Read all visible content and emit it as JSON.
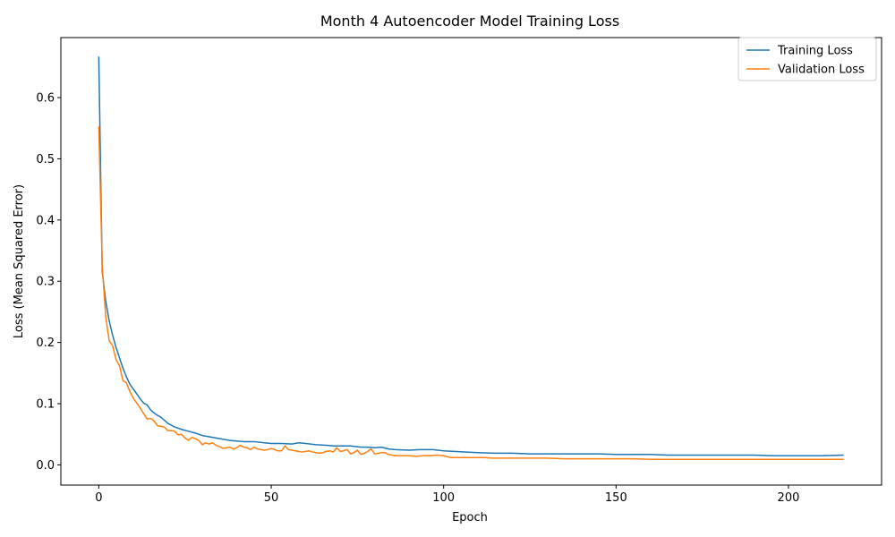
{
  "chart_data": {
    "type": "line",
    "title": "Month 4 Autoencoder Model Training Loss",
    "xlabel": "Epoch",
    "ylabel": "Loss (Mean Squared Error)",
    "xlim": [
      -11,
      227
    ],
    "ylim": [
      -0.033,
      0.698
    ],
    "xticks": [
      0,
      50,
      100,
      150,
      200
    ],
    "yticks": [
      0.0,
      0.1,
      0.2,
      0.3,
      0.4,
      0.5,
      0.6
    ],
    "xtick_labels": [
      "0",
      "50",
      "100",
      "150",
      "200"
    ],
    "ytick_labels": [
      "0.0",
      "0.1",
      "0.2",
      "0.3",
      "0.4",
      "0.5",
      "0.6"
    ],
    "grid": false,
    "legend_position": "top-right",
    "series": [
      {
        "name": "Training Loss",
        "color": "#1f77b4",
        "points": [
          [
            0,
            0.667
          ],
          [
            1,
            0.315
          ],
          [
            2,
            0.268
          ],
          [
            3,
            0.236
          ],
          [
            4,
            0.212
          ],
          [
            5,
            0.192
          ],
          [
            6,
            0.175
          ],
          [
            7,
            0.158
          ],
          [
            8,
            0.144
          ],
          [
            9,
            0.132
          ],
          [
            10,
            0.124
          ],
          [
            11,
            0.116
          ],
          [
            12,
            0.108
          ],
          [
            13,
            0.101
          ],
          [
            14,
            0.098
          ],
          [
            15,
            0.09
          ],
          [
            16,
            0.085
          ],
          [
            17,
            0.081
          ],
          [
            18,
            0.078
          ],
          [
            19,
            0.073
          ],
          [
            20,
            0.068
          ],
          [
            22,
            0.062
          ],
          [
            24,
            0.058
          ],
          [
            26,
            0.055
          ],
          [
            28,
            0.052
          ],
          [
            30,
            0.048
          ],
          [
            32,
            0.046
          ],
          [
            34,
            0.044
          ],
          [
            36,
            0.042
          ],
          [
            38,
            0.04
          ],
          [
            40,
            0.039
          ],
          [
            42,
            0.038
          ],
          [
            45,
            0.038
          ],
          [
            48,
            0.036
          ],
          [
            50,
            0.035
          ],
          [
            53,
            0.035
          ],
          [
            56,
            0.034
          ],
          [
            58,
            0.036
          ],
          [
            60,
            0.035
          ],
          [
            63,
            0.033
          ],
          [
            66,
            0.032
          ],
          [
            68,
            0.031
          ],
          [
            70,
            0.031
          ],
          [
            73,
            0.031
          ],
          [
            76,
            0.029
          ],
          [
            78,
            0.029
          ],
          [
            80,
            0.028
          ],
          [
            82,
            0.029
          ],
          [
            84,
            0.026
          ],
          [
            86,
            0.025
          ],
          [
            90,
            0.024
          ],
          [
            93,
            0.025
          ],
          [
            97,
            0.025
          ],
          [
            100,
            0.023
          ],
          [
            103,
            0.022
          ],
          [
            106,
            0.021
          ],
          [
            110,
            0.02
          ],
          [
            115,
            0.019
          ],
          [
            120,
            0.019
          ],
          [
            125,
            0.018
          ],
          [
            130,
            0.018
          ],
          [
            135,
            0.018
          ],
          [
            140,
            0.018
          ],
          [
            145,
            0.018
          ],
          [
            150,
            0.017
          ],
          [
            155,
            0.017
          ],
          [
            160,
            0.017
          ],
          [
            165,
            0.016
          ],
          [
            170,
            0.016
          ],
          [
            175,
            0.016
          ],
          [
            180,
            0.016
          ],
          [
            185,
            0.016
          ],
          [
            190,
            0.016
          ],
          [
            195,
            0.015
          ],
          [
            200,
            0.015
          ],
          [
            205,
            0.015
          ],
          [
            210,
            0.015
          ],
          [
            216,
            0.016
          ]
        ]
      },
      {
        "name": "Validation Loss",
        "color": "#ff7f0e",
        "points": [
          [
            0,
            0.553
          ],
          [
            1,
            0.325
          ],
          [
            2,
            0.243
          ],
          [
            3,
            0.203
          ],
          [
            4,
            0.195
          ],
          [
            5,
            0.172
          ],
          [
            6,
            0.162
          ],
          [
            7,
            0.138
          ],
          [
            8,
            0.134
          ],
          [
            9,
            0.12
          ],
          [
            10,
            0.109
          ],
          [
            11,
            0.101
          ],
          [
            12,
            0.093
          ],
          [
            13,
            0.084
          ],
          [
            14,
            0.075
          ],
          [
            15,
            0.076
          ],
          [
            16,
            0.072
          ],
          [
            17,
            0.064
          ],
          [
            18,
            0.063
          ],
          [
            19,
            0.062
          ],
          [
            20,
            0.056
          ],
          [
            21,
            0.056
          ],
          [
            22,
            0.055
          ],
          [
            23,
            0.049
          ],
          [
            24,
            0.05
          ],
          [
            25,
            0.044
          ],
          [
            26,
            0.04
          ],
          [
            27,
            0.045
          ],
          [
            28,
            0.043
          ],
          [
            29,
            0.04
          ],
          [
            30,
            0.033
          ],
          [
            31,
            0.036
          ],
          [
            32,
            0.034
          ],
          [
            33,
            0.036
          ],
          [
            34,
            0.032
          ],
          [
            35,
            0.03
          ],
          [
            36,
            0.027
          ],
          [
            37,
            0.028
          ],
          [
            38,
            0.029
          ],
          [
            39,
            0.026
          ],
          [
            40,
            0.028
          ],
          [
            41,
            0.032
          ],
          [
            42,
            0.029
          ],
          [
            43,
            0.028
          ],
          [
            44,
            0.025
          ],
          [
            45,
            0.029
          ],
          [
            46,
            0.026
          ],
          [
            47,
            0.025
          ],
          [
            48,
            0.024
          ],
          [
            49,
            0.025
          ],
          [
            50,
            0.027
          ],
          [
            51,
            0.025
          ],
          [
            52,
            0.023
          ],
          [
            53,
            0.023
          ],
          [
            54,
            0.031
          ],
          [
            55,
            0.025
          ],
          [
            56,
            0.024
          ],
          [
            57,
            0.023
          ],
          [
            58,
            0.022
          ],
          [
            59,
            0.021
          ],
          [
            60,
            0.022
          ],
          [
            61,
            0.023
          ],
          [
            62,
            0.021
          ],
          [
            63,
            0.02
          ],
          [
            64,
            0.019
          ],
          [
            65,
            0.02
          ],
          [
            66,
            0.022
          ],
          [
            67,
            0.023
          ],
          [
            68,
            0.021
          ],
          [
            69,
            0.028
          ],
          [
            70,
            0.022
          ],
          [
            71,
            0.023
          ],
          [
            72,
            0.025
          ],
          [
            73,
            0.018
          ],
          [
            74,
            0.02
          ],
          [
            75,
            0.024
          ],
          [
            76,
            0.017
          ],
          [
            77,
            0.019
          ],
          [
            78,
            0.022
          ],
          [
            79,
            0.026
          ],
          [
            80,
            0.018
          ],
          [
            81,
            0.019
          ],
          [
            82,
            0.02
          ],
          [
            83,
            0.02
          ],
          [
            84,
            0.017
          ],
          [
            85,
            0.016
          ],
          [
            86,
            0.015
          ],
          [
            88,
            0.015
          ],
          [
            90,
            0.015
          ],
          [
            92,
            0.014
          ],
          [
            94,
            0.015
          ],
          [
            96,
            0.015
          ],
          [
            98,
            0.016
          ],
          [
            100,
            0.015
          ],
          [
            102,
            0.012
          ],
          [
            104,
            0.012
          ],
          [
            106,
            0.012
          ],
          [
            108,
            0.012
          ],
          [
            110,
            0.012
          ],
          [
            112,
            0.012
          ],
          [
            114,
            0.011
          ],
          [
            116,
            0.011
          ],
          [
            118,
            0.011
          ],
          [
            120,
            0.011
          ],
          [
            125,
            0.011
          ],
          [
            130,
            0.011
          ],
          [
            135,
            0.01
          ],
          [
            140,
            0.01
          ],
          [
            145,
            0.01
          ],
          [
            150,
            0.01
          ],
          [
            155,
            0.01
          ],
          [
            160,
            0.009
          ],
          [
            165,
            0.009
          ],
          [
            170,
            0.009
          ],
          [
            175,
            0.009
          ],
          [
            180,
            0.009
          ],
          [
            185,
            0.009
          ],
          [
            190,
            0.009
          ],
          [
            195,
            0.009
          ],
          [
            200,
            0.009
          ],
          [
            205,
            0.009
          ],
          [
            210,
            0.009
          ],
          [
            216,
            0.009
          ]
        ]
      }
    ]
  }
}
